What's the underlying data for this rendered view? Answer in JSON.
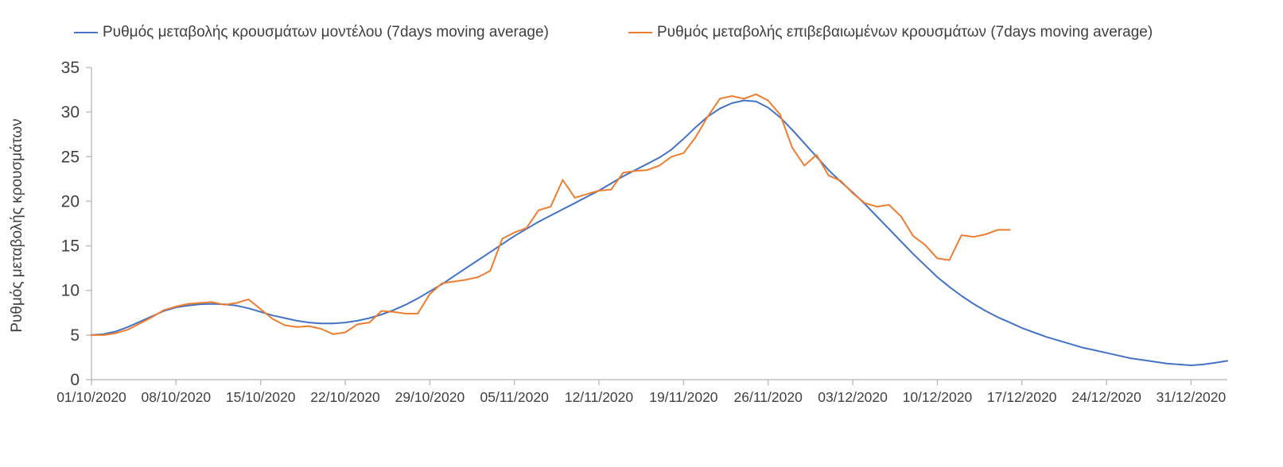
{
  "colors": {
    "axis": "#bfbfbf",
    "text": "#404040",
    "model_line": "#4472c4",
    "confirmed_line": "#ed7d31"
  },
  "chart_data": {
    "type": "line",
    "title": "",
    "xlabel": "",
    "ylabel": "Ρυθμός μεταβολής κρουσμάτων",
    "ylim": [
      0,
      35
    ],
    "yticks": [
      0,
      5,
      10,
      15,
      20,
      25,
      30,
      35
    ],
    "x_range_days": [
      0,
      94
    ],
    "x_tick_days": [
      0,
      7,
      14,
      21,
      28,
      35,
      42,
      49,
      56,
      63,
      70,
      77,
      84,
      91
    ],
    "x_tick_labels": [
      "01/10/2020",
      "08/10/2020",
      "15/10/2020",
      "22/10/2020",
      "29/10/2020",
      "05/11/2020",
      "12/11/2020",
      "19/11/2020",
      "26/11/2020",
      "03/12/2020",
      "10/12/2020",
      "17/12/2020",
      "24/12/2020",
      "31/12/2020"
    ],
    "grid": false,
    "legend_position": "top",
    "series": [
      {
        "name": "Ρυθμός μεταβολής κρουσμάτων μοντέλου (7days moving average)",
        "color": "#4472c4",
        "start_day": 0,
        "values": [
          5.0,
          5.1,
          5.4,
          5.9,
          6.5,
          7.1,
          7.7,
          8.1,
          8.3,
          8.45,
          8.5,
          8.45,
          8.3,
          8.0,
          7.6,
          7.2,
          6.9,
          6.6,
          6.4,
          6.3,
          6.3,
          6.4,
          6.6,
          6.9,
          7.3,
          7.8,
          8.4,
          9.1,
          9.9,
          10.7,
          11.6,
          12.5,
          13.4,
          14.3,
          15.2,
          16.1,
          16.9,
          17.7,
          18.4,
          19.1,
          19.8,
          20.5,
          21.2,
          22.0,
          22.8,
          23.5,
          24.2,
          24.9,
          25.8,
          27.0,
          28.3,
          29.5,
          30.4,
          31.0,
          31.3,
          31.2,
          30.5,
          29.4,
          28.0,
          26.5,
          25.0,
          23.5,
          22.2,
          21.0,
          19.7,
          18.3,
          16.9,
          15.5,
          14.1,
          12.8,
          11.5,
          10.4,
          9.4,
          8.5,
          7.7,
          7.0,
          6.4,
          5.8,
          5.3,
          4.8,
          4.4,
          4.0,
          3.6,
          3.3,
          3.0,
          2.7,
          2.4,
          2.2,
          2.0,
          1.8,
          1.7,
          1.6,
          1.7,
          1.9,
          2.1
        ]
      },
      {
        "name": "Ρυθμός μεταβολής επιβεβαιωμένων κρουσμάτων (7days moving average)",
        "color": "#ed7d31",
        "start_day": 0,
        "values": [
          5.0,
          5.0,
          5.2,
          5.6,
          6.3,
          7.0,
          7.8,
          8.2,
          8.5,
          8.6,
          8.7,
          8.4,
          8.6,
          9.0,
          7.9,
          6.8,
          6.1,
          5.9,
          6.0,
          5.7,
          5.1,
          5.3,
          6.2,
          6.4,
          7.7,
          7.6,
          7.4,
          7.4,
          9.6,
          10.8,
          11.0,
          11.2,
          11.5,
          12.2,
          15.8,
          16.5,
          17.0,
          19.0,
          19.4,
          22.4,
          20.4,
          20.8,
          21.2,
          21.3,
          23.2,
          23.4,
          23.5,
          24.0,
          25.0,
          25.4,
          27.2,
          29.5,
          31.5,
          31.8,
          31.5,
          32.0,
          31.3,
          29.7,
          26.0,
          24.0,
          25.2,
          22.9,
          22.3,
          20.9,
          19.8,
          19.4,
          19.6,
          18.3,
          16.1,
          15.1,
          13.6,
          13.4,
          16.2,
          16.0,
          16.3,
          16.8,
          16.8
        ]
      }
    ]
  }
}
